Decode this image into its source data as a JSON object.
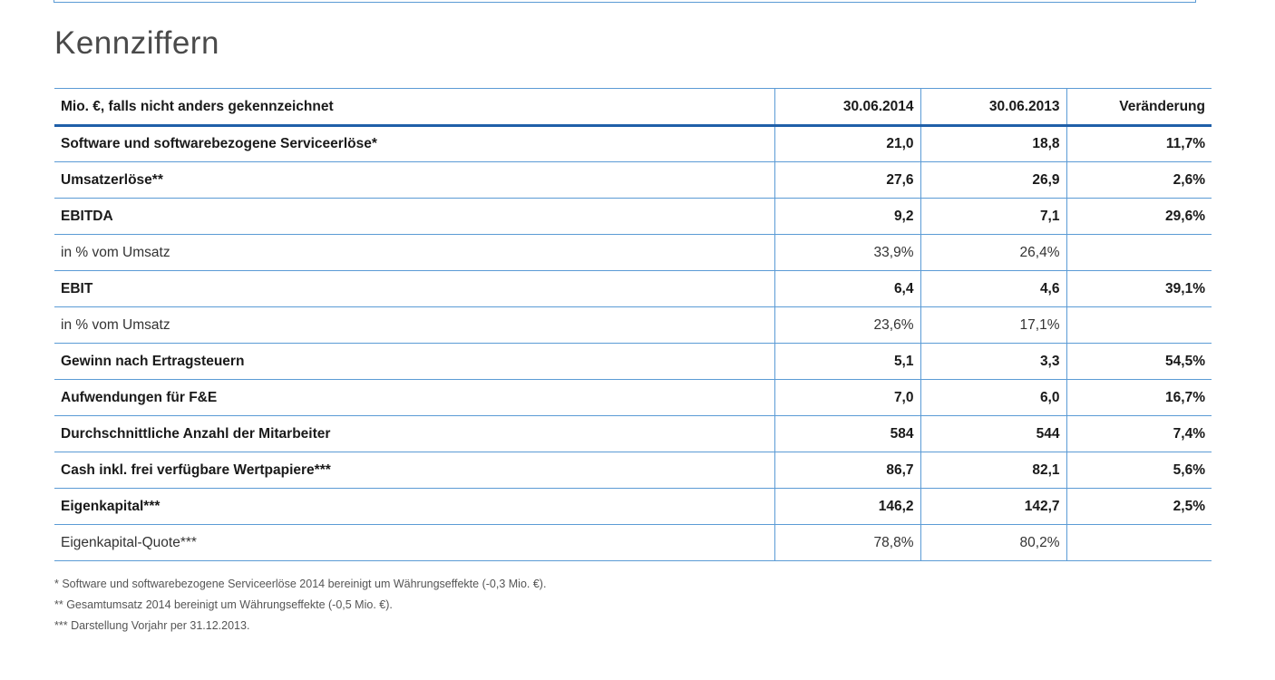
{
  "page": {
    "title": "Kennziffern"
  },
  "table": {
    "headers": [
      "Mio. €, falls nicht anders gekennzeichnet",
      "30.06.2014",
      "30.06.2013",
      "Veränderung"
    ],
    "rows": [
      {
        "label": "Software und softwarebezogene Serviceerlöse*",
        "v2014": "21,0",
        "v2013": "18,8",
        "change": "11,7%",
        "bold": true
      },
      {
        "label": "Umsatzerlöse**",
        "v2014": "27,6",
        "v2013": "26,9",
        "change": "2,6%",
        "bold": true
      },
      {
        "label": "EBITDA",
        "v2014": "9,2",
        "v2013": "7,1",
        "change": "29,6%",
        "bold": true
      },
      {
        "label": "in % vom Umsatz",
        "v2014": "33,9%",
        "v2013": "26,4%",
        "change": "",
        "bold": false
      },
      {
        "label": "EBIT",
        "v2014": "6,4",
        "v2013": "4,6",
        "change": "39,1%",
        "bold": true
      },
      {
        "label": "in % vom Umsatz",
        "v2014": "23,6%",
        "v2013": "17,1%",
        "change": "",
        "bold": false
      },
      {
        "label": "Gewinn nach Ertragsteuern",
        "v2014": "5,1",
        "v2013": "3,3",
        "change": "54,5%",
        "bold": true
      },
      {
        "label": "Aufwendungen für F&E",
        "v2014": "7,0",
        "v2013": "6,0",
        "change": "16,7%",
        "bold": true
      },
      {
        "label": "Durchschnittliche Anzahl der Mitarbeiter",
        "v2014": "584",
        "v2013": "544",
        "change": "7,4%",
        "bold": true
      },
      {
        "label": "Cash inkl. frei verfügbare Wertpapiere***",
        "v2014": "86,7",
        "v2013": "82,1",
        "change": "5,6%",
        "bold": true
      },
      {
        "label": "Eigenkapital***",
        "v2014": "146,2",
        "v2013": "142,7",
        "change": "2,5%",
        "bold": true
      },
      {
        "label": "Eigenkapital-Quote***",
        "v2014": "78,8%",
        "v2013": "80,2%",
        "change": "",
        "bold": false
      }
    ]
  },
  "footnotes": [
    "* Software und softwarebezogene Serviceerlöse 2014 bereinigt um Währungseffekte (-0,3 Mio. €).",
    "** Gesamtumsatz 2014 bereinigt um Währungseffekte (-0,5 Mio. €).",
    "*** Darstellung Vorjahr per 31.12.2013."
  ],
  "colors": {
    "border": "#5b9bd5",
    "header_rule": "#1f5fa8"
  }
}
